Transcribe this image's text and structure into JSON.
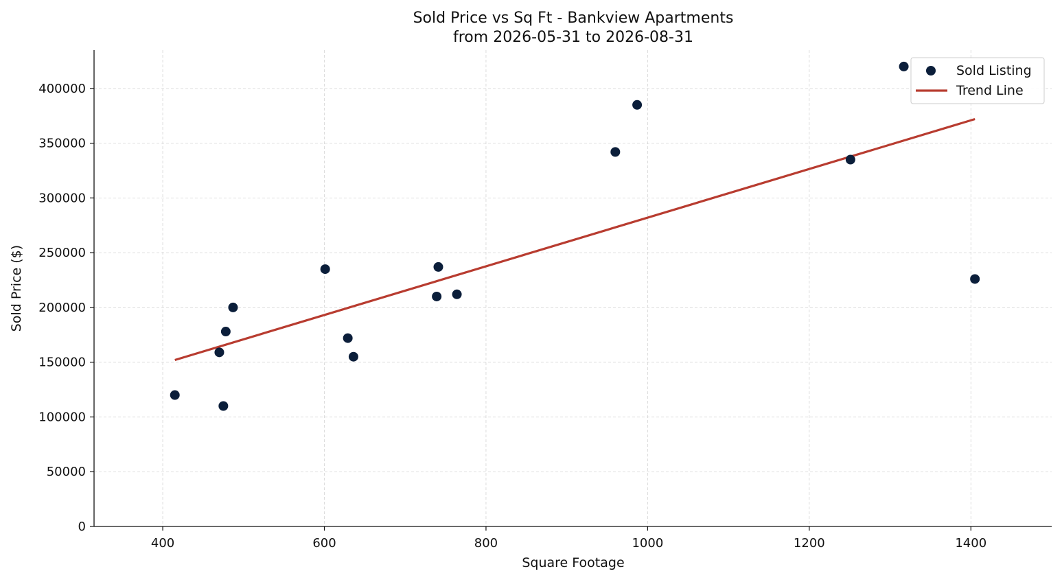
{
  "chart_data": {
    "type": "scatter",
    "title": "Sold Price vs Sq Ft - Bankview Apartments",
    "subtitle": "from 2026-05-31 to 2026-08-31",
    "xlabel": "Square Footage",
    "ylabel": "Sold Price ($)",
    "xlim": [
      315,
      1500
    ],
    "ylim": [
      0,
      435000
    ],
    "xticks": [
      400,
      600,
      800,
      1000,
      1200,
      1400
    ],
    "yticks": [
      0,
      50000,
      100000,
      150000,
      200000,
      250000,
      300000,
      350000,
      400000
    ],
    "grid": true,
    "legend_placement": "top-right",
    "series": [
      {
        "name": "Sold Listing",
        "kind": "scatter",
        "color": "#0b1e3a",
        "points": [
          {
            "x": 415,
            "y": 120000
          },
          {
            "x": 470,
            "y": 159000
          },
          {
            "x": 475,
            "y": 110000
          },
          {
            "x": 478,
            "y": 178000
          },
          {
            "x": 487,
            "y": 200000
          },
          {
            "x": 601,
            "y": 235000
          },
          {
            "x": 629,
            "y": 172000
          },
          {
            "x": 636,
            "y": 155000
          },
          {
            "x": 739,
            "y": 210000
          },
          {
            "x": 741,
            "y": 237000
          },
          {
            "x": 764,
            "y": 212000
          },
          {
            "x": 960,
            "y": 342000
          },
          {
            "x": 987,
            "y": 385000
          },
          {
            "x": 1251,
            "y": 335000
          },
          {
            "x": 1317,
            "y": 420000
          },
          {
            "x": 1405,
            "y": 226000
          }
        ]
      },
      {
        "name": "Trend Line",
        "kind": "line",
        "color": "#b83c30",
        "points": [
          {
            "x": 415,
            "y": 152000
          },
          {
            "x": 1405,
            "y": 372000
          }
        ]
      }
    ]
  }
}
